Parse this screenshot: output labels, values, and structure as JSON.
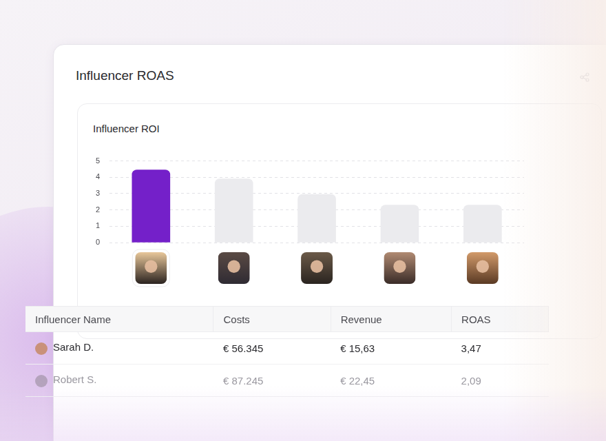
{
  "header": {
    "title": "Influencer ROAS"
  },
  "chart_data": {
    "type": "bar",
    "title": "Influencer ROI",
    "categories": [
      null,
      null,
      null,
      null,
      null
    ],
    "values": [
      4.45,
      3.9,
      2.95,
      2.3,
      2.3
    ],
    "colors": [
      "#7420c9",
      "#ebebee",
      "#ebebee",
      "#ebebee",
      "#ebebee"
    ],
    "ylim": [
      0,
      5
    ],
    "yticks": [
      0,
      1,
      2,
      3,
      4,
      5
    ],
    "grid": true
  },
  "table": {
    "columns": [
      "Influencer Name",
      "Costs",
      "Revenue",
      "ROAS"
    ],
    "rows": [
      [
        "Sarah D.",
        "€ 56.345",
        "€ 15,63",
        "3,47"
      ],
      [
        "Robert S.",
        "€ 87.245",
        "€ 22,45",
        "2,09"
      ]
    ]
  }
}
